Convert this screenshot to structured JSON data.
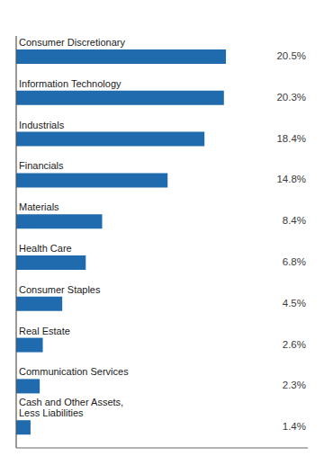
{
  "chart_data": {
    "type": "bar",
    "orientation": "horizontal",
    "categories": [
      "Cash and Other Assets,\nLess Liabilities",
      "Communication Services",
      "Real Estate",
      "Consumer Staples",
      "Health Care",
      "Materials",
      "Financials",
      "Industrials",
      "Information Technology",
      "Consumer Discretionary"
    ],
    "values": [
      1.4,
      2.3,
      2.6,
      4.5,
      6.8,
      8.4,
      14.8,
      18.4,
      20.3,
      20.5
    ],
    "value_labels": [
      "1.4%",
      "2.3%",
      "2.6%",
      "4.5%",
      "6.8%",
      "8.4%",
      "14.8%",
      "18.4%",
      "20.3%",
      "20.5%"
    ],
    "data_labels": true,
    "color": "#1F6BAD",
    "xlim": [
      0,
      28.5
    ],
    "grid": false,
    "tick_labels": false
  }
}
